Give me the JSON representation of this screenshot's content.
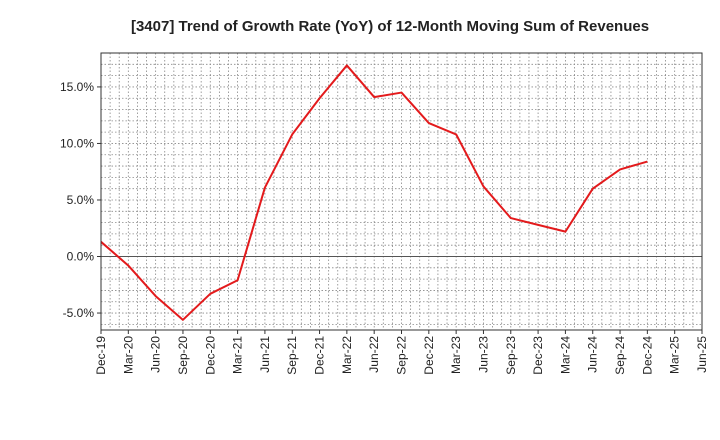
{
  "chart_data": {
    "type": "line",
    "title": "[3407]  Trend of Growth Rate (YoY) of 12-Month Moving Sum of Revenues",
    "xlabel": "",
    "ylabel": "",
    "x_tick_labels": [
      "Dec-19",
      "Mar-20",
      "Jun-20",
      "Sep-20",
      "Dec-20",
      "Mar-21",
      "Jun-21",
      "Sep-21",
      "Dec-21",
      "Mar-22",
      "Jun-22",
      "Sep-22",
      "Dec-22",
      "Mar-23",
      "Jun-23",
      "Sep-23",
      "Dec-23",
      "Mar-24",
      "Jun-24",
      "Sep-24",
      "Dec-24",
      "Mar-25",
      "Jun-25"
    ],
    "y_ticks": [
      -5.0,
      0.0,
      5.0,
      10.0,
      15.0
    ],
    "y_tick_labels": [
      "-5.0%",
      "0.0%",
      "5.0%",
      "10.0%",
      "15.0%"
    ],
    "ylim": [
      -6.5,
      18.0
    ],
    "grid": true,
    "zero_line": true,
    "series": [
      {
        "color": "#e31a1c",
        "x": [
          "Dec-19",
          "Mar-20",
          "Jun-20",
          "Sep-20",
          "Dec-20",
          "Mar-21",
          "Jun-21",
          "Sep-21",
          "Dec-21",
          "Mar-22",
          "Jun-22",
          "Sep-22",
          "Dec-22",
          "Mar-23",
          "Jun-23",
          "Sep-23",
          "Dec-23",
          "Mar-24",
          "Jun-24",
          "Sep-24",
          "Dec-24"
        ],
        "values": [
          1.3,
          -0.8,
          -3.5,
          -5.6,
          -3.3,
          -2.1,
          6.1,
          10.8,
          14.0,
          16.9,
          14.1,
          14.5,
          11.8,
          10.8,
          6.2,
          3.4,
          2.8,
          2.2,
          6.0,
          7.7,
          8.4
        ]
      }
    ]
  }
}
